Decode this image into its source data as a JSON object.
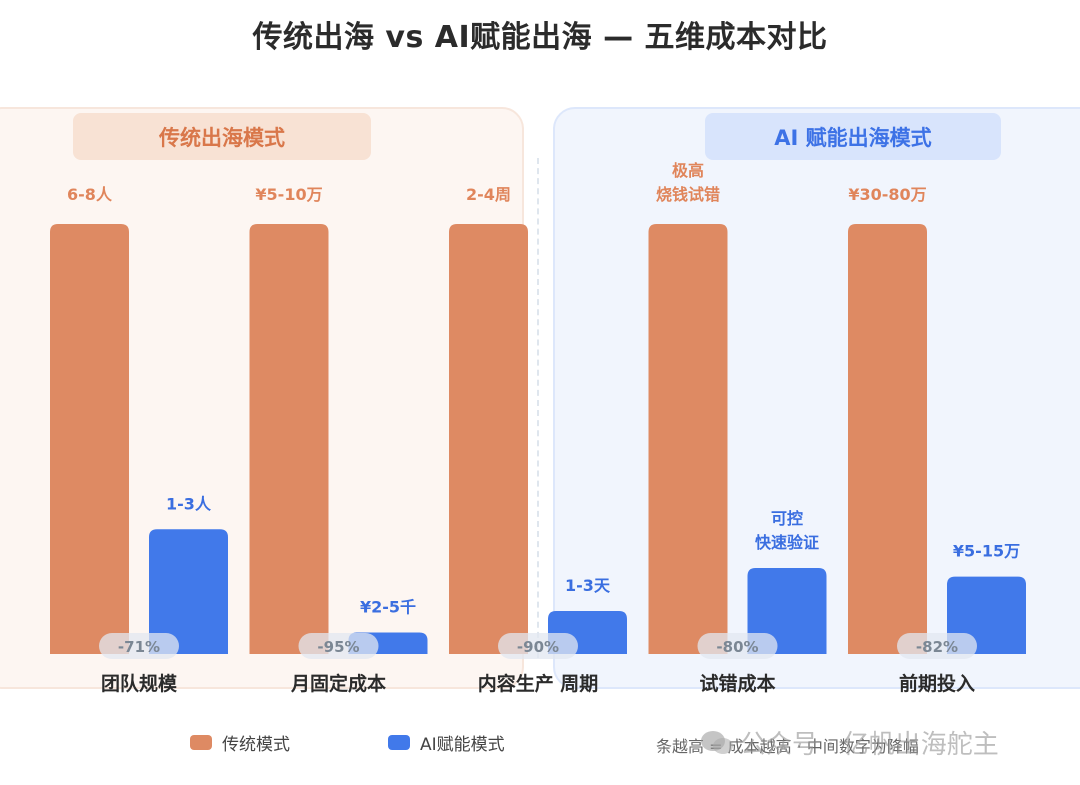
{
  "title": "传统出海 vs AI赋能出海 — 五维成本对比",
  "panels": {
    "traditional_header": "传统出海模式",
    "ai_header": "AI 赋能出海模式"
  },
  "legend": {
    "traditional": "传统模式",
    "ai": "AI赋能模式"
  },
  "footnote": "条越高 = 成本越高 · 中间数字为降幅",
  "watermark": "公众号 · 亿帆出海舵主",
  "colors": {
    "traditional": "#de8a63",
    "ai": "#4179ea",
    "traditional_label": "#e0855b",
    "ai_label": "#3a6ee0",
    "badge_text": "#7b8794"
  },
  "chart_data": {
    "type": "bar",
    "categories": [
      "团队规模",
      "月固定成本",
      "内容生产 周期",
      "试错成本",
      "前期投入"
    ],
    "series": [
      {
        "name": "传统模式",
        "values": [
          100,
          100,
          100,
          100,
          100
        ]
      },
      {
        "name": "AI赋能模式",
        "values": [
          29,
          5,
          10,
          20,
          18
        ]
      }
    ],
    "bar_labels": {
      "traditional": [
        "6-8人",
        "¥5-10万",
        "2-4周",
        "极高\n烧钱试错",
        "¥30-80万"
      ],
      "ai": [
        "1-3人",
        "¥2-5千",
        "1-3天",
        "可控\n快速验证",
        "¥5-15万"
      ]
    },
    "reductions": [
      "-71%",
      "-95%",
      "-90%",
      "-80%",
      "-82%"
    ],
    "ylim": [
      0,
      100
    ],
    "grid": false,
    "legend_position": "bottom"
  }
}
